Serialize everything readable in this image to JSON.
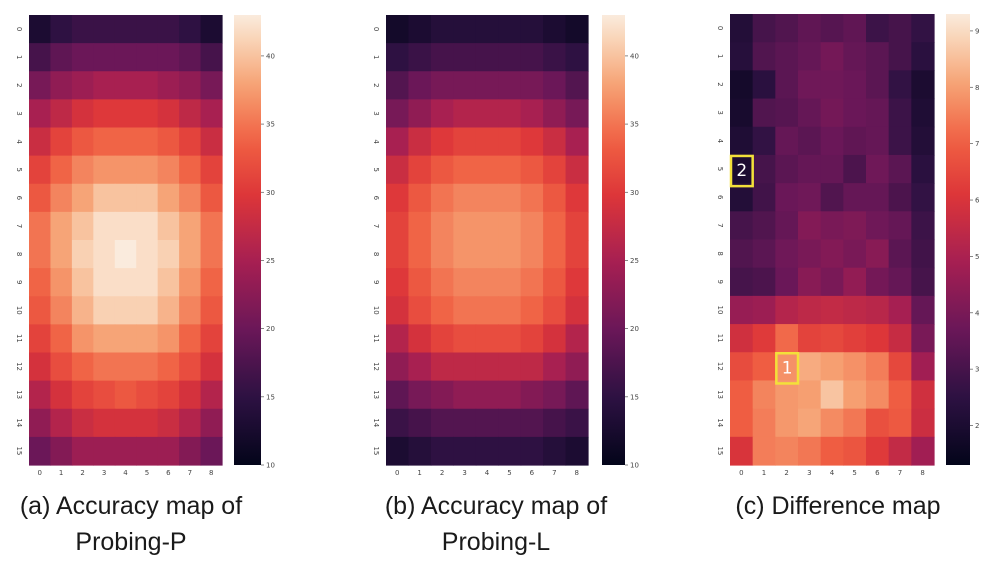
{
  "chart_data": [
    {
      "type": "heatmap",
      "caption_line1": "(a) Accuracy map of",
      "caption_line2": "Probing-P",
      "x_ticks": [
        "0",
        "1",
        "2",
        "3",
        "4",
        "5",
        "6",
        "7",
        "8"
      ],
      "y_ticks": [
        "0",
        "1",
        "2",
        "3",
        "4",
        "5",
        "6",
        "7",
        "8",
        "9",
        "10",
        "11",
        "12",
        "13",
        "14",
        "15"
      ],
      "colorbar": {
        "min": 10,
        "max": 43,
        "ticks": [
          10,
          15,
          20,
          25,
          30,
          35,
          40
        ]
      },
      "values": [
        [
          13,
          15,
          16,
          16,
          16,
          16,
          16,
          15,
          13
        ],
        [
          17,
          19,
          20,
          20,
          20,
          20,
          20,
          19,
          17
        ],
        [
          21,
          23,
          24,
          25,
          25,
          25,
          24,
          23,
          21
        ],
        [
          25,
          27,
          29,
          30,
          30,
          30,
          29,
          27,
          25
        ],
        [
          28,
          31,
          33,
          34,
          34,
          34,
          33,
          31,
          28
        ],
        [
          31,
          34,
          36,
          37,
          37,
          37,
          36,
          34,
          31
        ],
        [
          33,
          36,
          38,
          40,
          40,
          40,
          38,
          36,
          33
        ],
        [
          35,
          38,
          40,
          42,
          42,
          42,
          40,
          38,
          35
        ],
        [
          35,
          38,
          41,
          42,
          43,
          42,
          41,
          38,
          35
        ],
        [
          34,
          37,
          40,
          42,
          42,
          42,
          40,
          37,
          34
        ],
        [
          33,
          36,
          39,
          41,
          41,
          41,
          39,
          36,
          33
        ],
        [
          31,
          34,
          37,
          38,
          38,
          38,
          37,
          34,
          31
        ],
        [
          29,
          32,
          34,
          35,
          35,
          35,
          34,
          32,
          29
        ],
        [
          26,
          29,
          31,
          32,
          33,
          32,
          31,
          29,
          26
        ],
        [
          23,
          26,
          28,
          29,
          29,
          29,
          28,
          26,
          23
        ],
        [
          20,
          22,
          24,
          24,
          24,
          24,
          24,
          22,
          20
        ]
      ]
    },
    {
      "type": "heatmap",
      "caption_line1": "(b) Accuracy map of",
      "caption_line2": "Probing-L",
      "x_ticks": [
        "0",
        "1",
        "2",
        "3",
        "4",
        "5",
        "6",
        "7",
        "8"
      ],
      "y_ticks": [
        "0",
        "1",
        "2",
        "3",
        "4",
        "5",
        "6",
        "7",
        "8",
        "9",
        "10",
        "11",
        "12",
        "13",
        "14",
        "15"
      ],
      "colorbar": {
        "min": 10,
        "max": 43,
        "ticks": [
          10,
          15,
          20,
          25,
          30,
          35,
          40
        ]
      },
      "values": [
        [
          12,
          13,
          14,
          14,
          14,
          14,
          14,
          13,
          12
        ],
        [
          15,
          16,
          17,
          17,
          17,
          17,
          17,
          16,
          15
        ],
        [
          18,
          20,
          21,
          21,
          21,
          21,
          21,
          20,
          18
        ],
        [
          21,
          23,
          25,
          26,
          26,
          26,
          25,
          23,
          21
        ],
        [
          25,
          28,
          30,
          31,
          31,
          31,
          30,
          28,
          25
        ],
        [
          28,
          31,
          33,
          34,
          34,
          34,
          33,
          31,
          28
        ],
        [
          30,
          33,
          35,
          36,
          36,
          36,
          35,
          33,
          30
        ],
        [
          31,
          34,
          36,
          37,
          37,
          37,
          36,
          34,
          31
        ],
        [
          31,
          34,
          36,
          37,
          37,
          37,
          36,
          34,
          31
        ],
        [
          30,
          33,
          35,
          36,
          36,
          36,
          35,
          33,
          30
        ],
        [
          29,
          32,
          34,
          35,
          35,
          35,
          34,
          32,
          29
        ],
        [
          26,
          29,
          31,
          32,
          32,
          32,
          31,
          29,
          26
        ],
        [
          23,
          25,
          27,
          27,
          27,
          27,
          27,
          25,
          23
        ],
        [
          19,
          21,
          22,
          23,
          23,
          23,
          22,
          21,
          19
        ],
        [
          16,
          17,
          18,
          18,
          18,
          18,
          18,
          17,
          16
        ],
        [
          13,
          14,
          15,
          15,
          15,
          15,
          15,
          14,
          13
        ]
      ]
    },
    {
      "type": "heatmap",
      "caption_line1": "(c) Difference map",
      "caption_line2": "",
      "x_ticks": [
        "0",
        "1",
        "2",
        "3",
        "4",
        "5",
        "6",
        "7",
        "8"
      ],
      "y_ticks": [
        "0",
        "1",
        "2",
        "3",
        "4",
        "5",
        "6",
        "7",
        "8",
        "9",
        "10",
        "11",
        "12",
        "13",
        "14",
        "15"
      ],
      "colorbar": {
        "min": 1.3,
        "max": 9.3,
        "ticks": [
          2,
          3,
          4,
          5,
          6,
          7,
          8,
          9
        ]
      },
      "values": [
        [
          2.2,
          3.0,
          3.2,
          3.5,
          3.3,
          3.5,
          2.8,
          3.0,
          2.6
        ],
        [
          2.3,
          3.2,
          3.4,
          3.6,
          3.9,
          3.6,
          3.4,
          3.0,
          2.4
        ],
        [
          1.8,
          2.4,
          3.4,
          3.8,
          3.8,
          3.7,
          3.4,
          2.6,
          2.0
        ],
        [
          1.9,
          3.2,
          3.3,
          3.6,
          3.9,
          3.7,
          3.6,
          2.8,
          2.1
        ],
        [
          2.1,
          2.6,
          3.6,
          3.4,
          3.7,
          3.5,
          3.6,
          2.8,
          2.2
        ],
        [
          2.0,
          3.0,
          3.4,
          3.6,
          3.6,
          3.1,
          3.8,
          3.4,
          2.4
        ],
        [
          2.2,
          2.9,
          3.7,
          3.8,
          3.2,
          3.6,
          3.6,
          3.1,
          2.6
        ],
        [
          3.0,
          3.2,
          3.6,
          4.2,
          4.0,
          4.1,
          3.8,
          3.6,
          2.8
        ],
        [
          3.2,
          3.4,
          3.8,
          4.0,
          4.2,
          4.0,
          4.3,
          3.4,
          2.9
        ],
        [
          3.0,
          3.1,
          3.7,
          4.3,
          4.0,
          4.5,
          3.9,
          3.6,
          3.0
        ],
        [
          4.6,
          4.7,
          5.2,
          5.4,
          5.5,
          5.4,
          5.3,
          4.9,
          3.6
        ],
        [
          5.8,
          6.2,
          7.2,
          6.4,
          6.5,
          6.3,
          6.1,
          5.6,
          4.0
        ],
        [
          6.6,
          7.0,
          7.8,
          8.2,
          8.0,
          7.8,
          7.5,
          6.5,
          4.8
        ],
        [
          7.0,
          7.6,
          7.9,
          8.0,
          8.6,
          8.0,
          7.7,
          7.0,
          5.8
        ],
        [
          7.0,
          7.5,
          7.9,
          8.1,
          7.7,
          7.4,
          6.7,
          6.9,
          5.7
        ],
        [
          6.0,
          7.5,
          7.6,
          7.4,
          7.0,
          6.8,
          6.2,
          5.5,
          4.8
        ]
      ],
      "annotations": [
        {
          "label": "1",
          "row": 12,
          "col": 2
        },
        {
          "label": "2",
          "row": 5,
          "col": 0
        }
      ]
    }
  ]
}
